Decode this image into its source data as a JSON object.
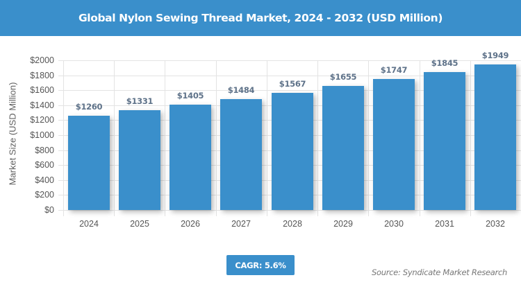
{
  "header": {
    "title": "Global Nylon Sewing Thread Market, 2024 - 2032 (USD Million)"
  },
  "chart_data": {
    "type": "bar",
    "title": "Global Nylon Sewing Thread Market, 2024 - 2032 (USD Million)",
    "xlabel": "",
    "ylabel": "Market Size (USD Million)",
    "categories": [
      "2024",
      "2025",
      "2026",
      "2027",
      "2028",
      "2029",
      "2030",
      "2031",
      "2032"
    ],
    "values": [
      1260,
      1331,
      1405,
      1484,
      1567,
      1655,
      1747,
      1845,
      1949
    ],
    "value_labels": [
      "$1260",
      "$1331",
      "$1405",
      "$1484",
      "$1567",
      "$1655",
      "$1747",
      "$1845",
      "$1949"
    ],
    "ylim": [
      0,
      2000
    ],
    "yticks": [
      "$0",
      "$200",
      "$400",
      "$600",
      "$800",
      "$1000",
      "$1200",
      "$1400",
      "$1600",
      "$1800",
      "$2000"
    ],
    "grid": true,
    "bar_color": "#3a8fcb",
    "legend": null
  },
  "footer": {
    "cagr_label": "CAGR: 5.6%",
    "source": "Source: Syndicate Market Research"
  },
  "colors": {
    "accent": "#3a8fcb",
    "label_text": "#5e7289"
  }
}
